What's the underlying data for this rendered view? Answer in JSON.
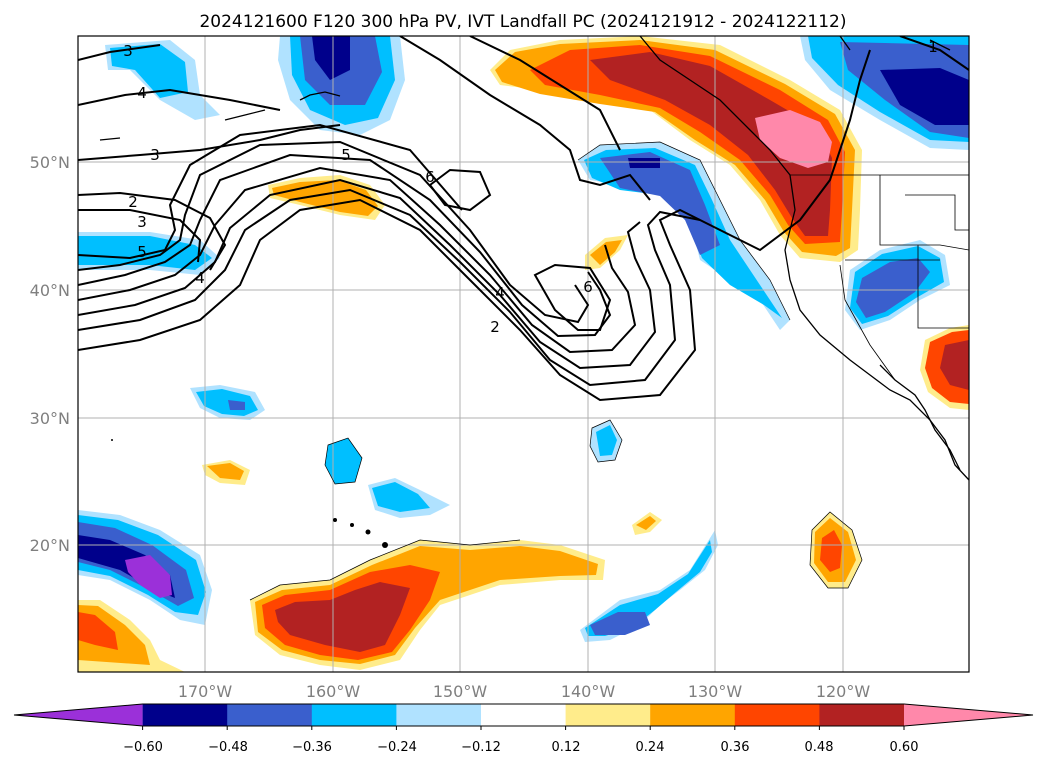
{
  "figure": {
    "title": "2024121600 F120 300 hPa PV, IVT Landfall PC (2024121912 - 2024122112)"
  },
  "map": {
    "lon_ticks": [
      "170°W",
      "160°W",
      "150°W",
      "140°W",
      "130°W",
      "120°W"
    ],
    "lat_ticks": [
      "50°N",
      "40°N",
      "30°N",
      "20°N"
    ],
    "contour_labels": [
      "3",
      "4",
      "3",
      "5",
      "6",
      "2",
      "3",
      "5",
      "4",
      "4",
      "2",
      "6",
      "1"
    ]
  },
  "colorbar": {
    "ticks": [
      "−0.60",
      "−0.48",
      "−0.36",
      "−0.24",
      "−0.12",
      "0.12",
      "0.24",
      "0.36",
      "0.48",
      "0.60"
    ],
    "colors": [
      "#9b30d9",
      "#00008b",
      "#3a5fcd",
      "#00bfff",
      "#b0e2ff",
      "#ffffff",
      "#ffec8b",
      "#ffa500",
      "#ff4500",
      "#b22222",
      "#ff88aa"
    ]
  }
}
